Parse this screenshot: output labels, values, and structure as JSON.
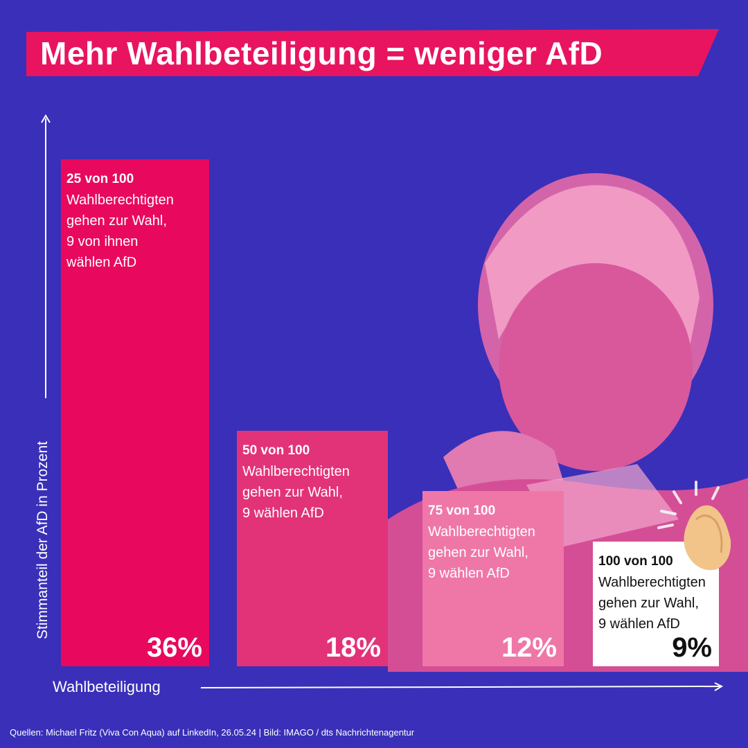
{
  "title": "Mehr Wahlbeteiligung = weniger AfD",
  "chart_data": {
    "type": "bar",
    "title": "Mehr Wahlbeteiligung = weniger AfD",
    "xlabel": "Wahlbeteiligung",
    "ylabel": "Stimmanteil der AfD in Prozent",
    "ylim": [
      0,
      36
    ],
    "bars": [
      {
        "head": "25 von 100",
        "body": "Wahlberechtigten\ngehen zur Wahl,\n9 von ihnen\nwählen AfD",
        "value": 36,
        "label": "36%",
        "color": "#e8095e",
        "text_color": "#ffffff"
      },
      {
        "head": "50 von 100",
        "body": "Wahlberechtigten\ngehen zur Wahl,\n9 wählen AfD",
        "value": 18,
        "label": "18%",
        "color": "#e23378",
        "text_color": "#ffffff"
      },
      {
        "head": "75 von 100",
        "body": "Wahlberechtigten\ngehen zur Wahl,\n9 wählen AfD",
        "value": 12,
        "label": "12%",
        "color": "#ef77a8",
        "text_color": "#ffffff"
      },
      {
        "head": "100 von 100",
        "body": "Wahlberechtigten\ngehen zur Wahl,\n9 wählen AfD",
        "value": 9,
        "label": "9%",
        "color": "#ffffff",
        "text_color": "#111111"
      }
    ]
  },
  "source": "Quellen: Michael Fritz (Viva Con Aqua) auf LinkedIn, 26.05.24  | Bild: IMAGO / dts Nachrichtenagentur",
  "colors": {
    "background": "#3a2fb8",
    "accent": "#e8145f",
    "clap": "#f2c48a"
  },
  "icons": {
    "person": "portrait-photo",
    "applause": "clapping-hands-icon"
  }
}
